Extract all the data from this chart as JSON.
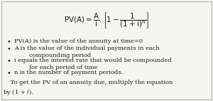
{
  "background_color": "#f5f5f0",
  "formula_line1": "$\\mathrm{PV(A)=\\dfrac{A}{i}.\\left[1-\\dfrac{1}{(1+i)^{n}}\\right]}$",
  "bullets": [
    "PV(A) is the value of the annuity at time=0",
    "A is the value of the individual payments in each\n        compounding period",
    "i equals the interest rate that would be compounded\n        for each period of time",
    "n is the number of payment periods."
  ],
  "footer_line1": "    To get the PV of an annuity due, multiply the equation",
  "footer_line2": "by (1 + i).",
  "text_color": "#1a1a1a",
  "font_size_formula": 7.5,
  "font_size_text": 6.0,
  "border_color": "#aaaaaa"
}
